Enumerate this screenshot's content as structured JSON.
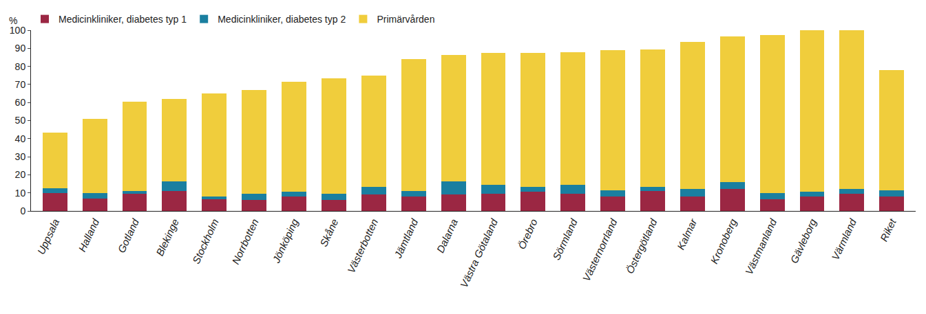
{
  "chart_data": {
    "type": "bar",
    "stacked": true,
    "y_label": "%",
    "categories": [
      "Uppsala",
      "Halland",
      "Gotland",
      "Blekinge",
      "Stockholm",
      "Norrbotten",
      "Jönköping",
      "Skåne",
      "Västerbotten",
      "Jämtland",
      "Dalarna",
      "Västra Götaland",
      "Örebro",
      "Sörmland",
      "Västernorrland",
      "Östergötland",
      "Kalmar",
      "Kronoberg",
      "Västmanland",
      "Gävleborg",
      "Värmland",
      "Riket"
    ],
    "series": [
      {
        "name": "Medicinkliniker, diabetes typ 1",
        "color": "#9b2743",
        "values": [
          10,
          7,
          9.5,
          11,
          6.5,
          6,
          8,
          6,
          9,
          8,
          9,
          9.5,
          10.5,
          9.5,
          8,
          11,
          8,
          12,
          6.5,
          8,
          9.5,
          8
        ]
      },
      {
        "name": "Medicinkliniker, diabetes typ 2",
        "color": "#1a7fa0",
        "values": [
          2.5,
          3,
          1.5,
          5.5,
          1.5,
          3.5,
          2.5,
          3.5,
          4.5,
          3,
          7.5,
          5,
          3,
          5,
          3.5,
          2.5,
          4,
          4,
          3.5,
          2.5,
          2.5,
          3.5
        ]
      },
      {
        "name": "Primärvården",
        "color": "#f0cd3c",
        "values": [
          31,
          41,
          49.5,
          45.5,
          57,
          57.5,
          61,
          64,
          61.5,
          73,
          70,
          73,
          74,
          73.5,
          77.5,
          76,
          81.5,
          80.5,
          87.5,
          89.5,
          88,
          66.5
        ]
      }
    ],
    "ylim": [
      0,
      100
    ],
    "yticks": [
      0,
      10,
      20,
      30,
      40,
      50,
      60,
      70,
      80,
      90,
      100
    ],
    "grid": false,
    "legend": "top left"
  }
}
